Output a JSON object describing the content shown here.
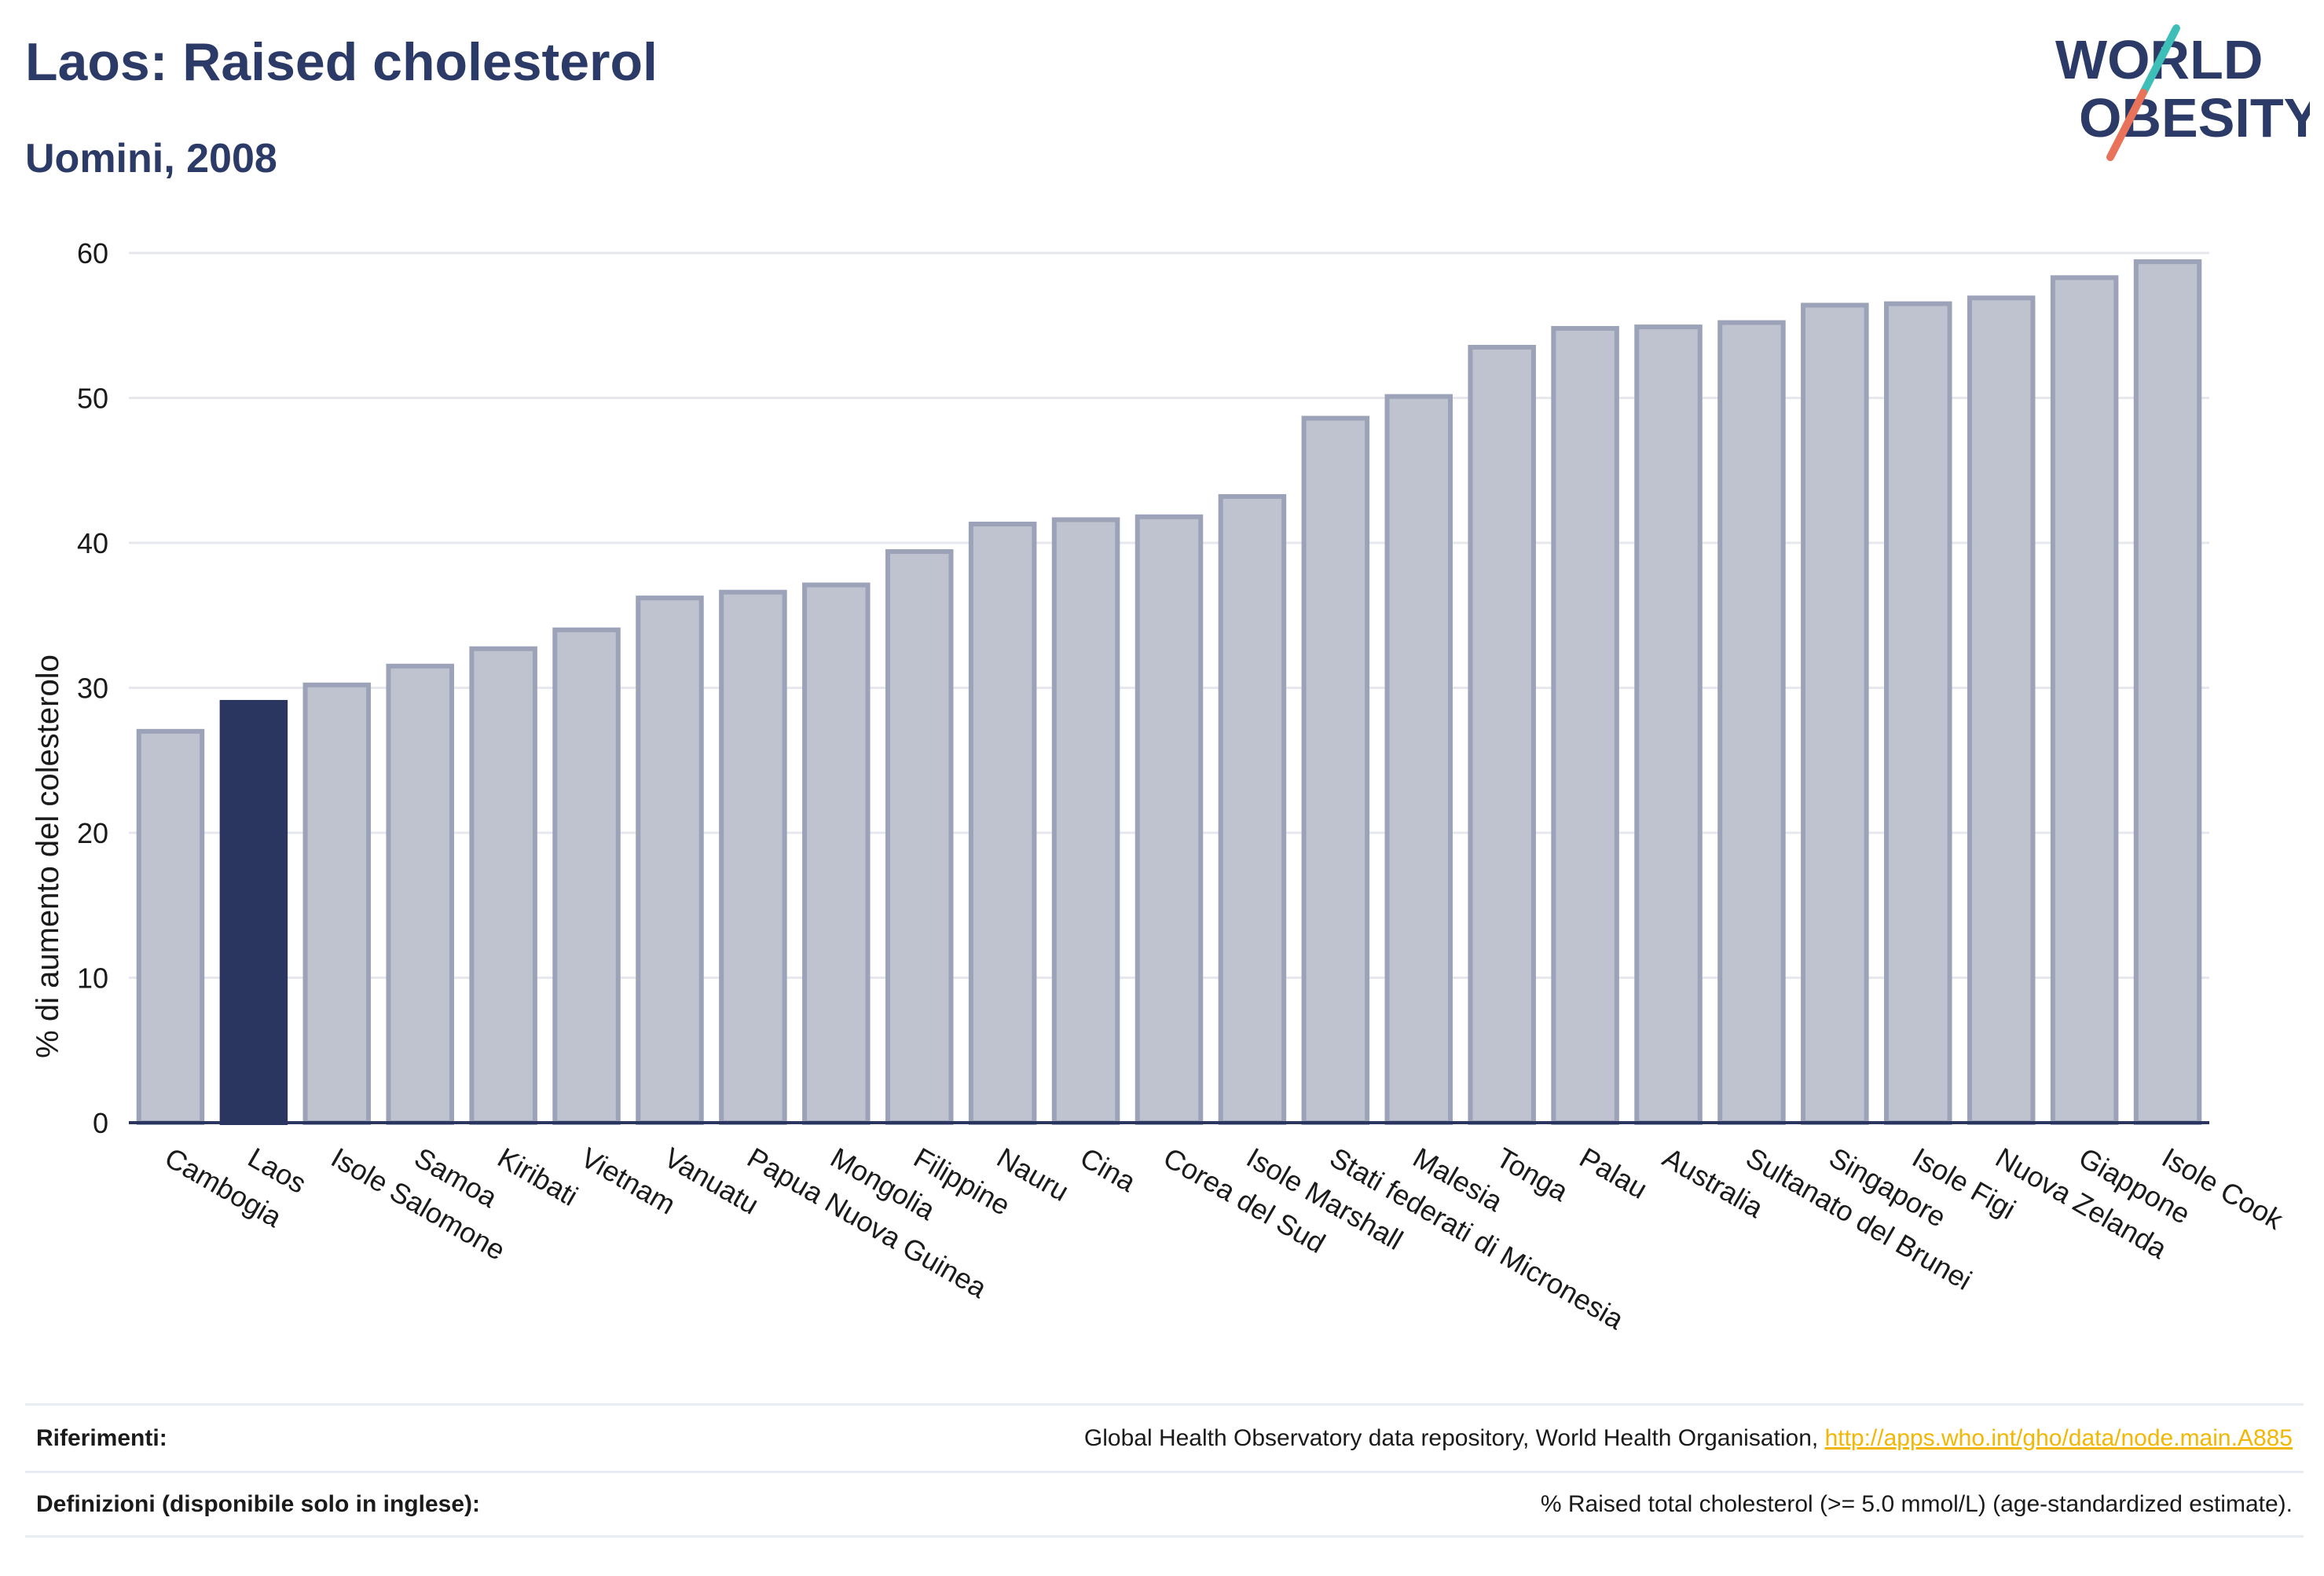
{
  "header": {
    "title": "Laos: Raised cholesterol",
    "subtitle": "Uomini, 2008"
  },
  "logo": {
    "line1": "WORLD",
    "line2": "OBESITY",
    "colors": {
      "text": "#2b3a67",
      "slash_top": "#3dbfb8",
      "slash_bottom": "#e8735a"
    }
  },
  "colors": {
    "bar_default": "#bfc3cf",
    "bar_default_stroke": "#9ca2b8",
    "bar_highlight": "#2b3660",
    "axis": "#2b3660",
    "grid": "#e6e8ee"
  },
  "chart_data": {
    "type": "bar",
    "ylabel": "% di aumento del colesterolo",
    "ylim": [
      0,
      60
    ],
    "yticks": [
      0,
      10,
      20,
      30,
      40,
      50,
      60
    ],
    "grid": true,
    "highlight": "Laos",
    "categories": [
      "Cambogia",
      "Laos",
      "Isole Salomone",
      "Samoa",
      "Kiribati",
      "Vietnam",
      "Vanuatu",
      "Papua Nuova Guinea",
      "Mongolia",
      "Filippine",
      "Nauru",
      "Cina",
      "Corea del Sud",
      "Isole Marshall",
      "Stati federati di Micronesia",
      "Malesia",
      "Tonga",
      "Palau",
      "Australia",
      "Sultanato del Brunei",
      "Singapore",
      "Isole Figi",
      "Nuova Zelanda",
      "Giappone",
      "Isole Cook"
    ],
    "values": [
      27.0,
      29.0,
      30.2,
      31.5,
      32.7,
      34.0,
      36.2,
      36.6,
      37.1,
      39.4,
      41.3,
      41.6,
      41.8,
      43.2,
      48.6,
      50.1,
      53.5,
      54.8,
      54.9,
      55.2,
      56.4,
      56.5,
      56.9,
      58.3,
      59.4
    ]
  },
  "footer": {
    "references_label": "Riferimenti:",
    "references_text": "Global Health Observatory data repository, World Health Organisation, ",
    "references_link": "http://apps.who.int/gho/data/node.main.A885",
    "definitions_label": "Definizioni (disponibile solo in inglese):",
    "definitions_text": "% Raised total cholesterol (>= 5.0 mmol/L) (age-standardized estimate)."
  }
}
